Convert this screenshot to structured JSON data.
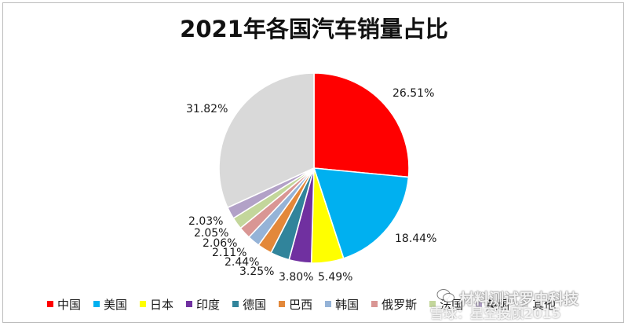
{
  "chart_data": {
    "type": "pie",
    "title": "2021年各国汽车销量占比",
    "slices": [
      {
        "name": "中国",
        "value": 26.51,
        "label": "26.51%",
        "color": "#ff0000"
      },
      {
        "name": "美国",
        "value": 18.44,
        "label": "18.44%",
        "color": "#00b0f0"
      },
      {
        "name": "日本",
        "value": 5.49,
        "label": "5.49%",
        "color": "#ffff00"
      },
      {
        "name": "印度",
        "value": 3.8,
        "label": "3.80%",
        "color": "#7030a0"
      },
      {
        "name": "德国",
        "value": 3.25,
        "label": "3.25%",
        "color": "#31849b"
      },
      {
        "name": "巴西",
        "value": 2.44,
        "label": "2.44%",
        "color": "#e3883a"
      },
      {
        "name": "韩国",
        "value": 2.11,
        "label": "2.11%",
        "color": "#95b3d7"
      },
      {
        "name": "俄罗斯",
        "value": 2.06,
        "label": "2.06%",
        "color": "#d99694"
      },
      {
        "name": "法国",
        "value": 2.05,
        "label": "2.05%",
        "color": "#c3d69b"
      },
      {
        "name": "英国",
        "value": 2.03,
        "label": "2.03%",
        "color": "#b2a1c7"
      },
      {
        "name": "其他",
        "value": 31.82,
        "label": "31.82%",
        "color": "#d9d9d9"
      }
    ],
    "legend_position": "bottom"
  },
  "watermark": {
    "line1": "材料测试罗中科技",
    "line2": "雪球：星空投顾2015",
    "icon": "wechat-icon"
  }
}
